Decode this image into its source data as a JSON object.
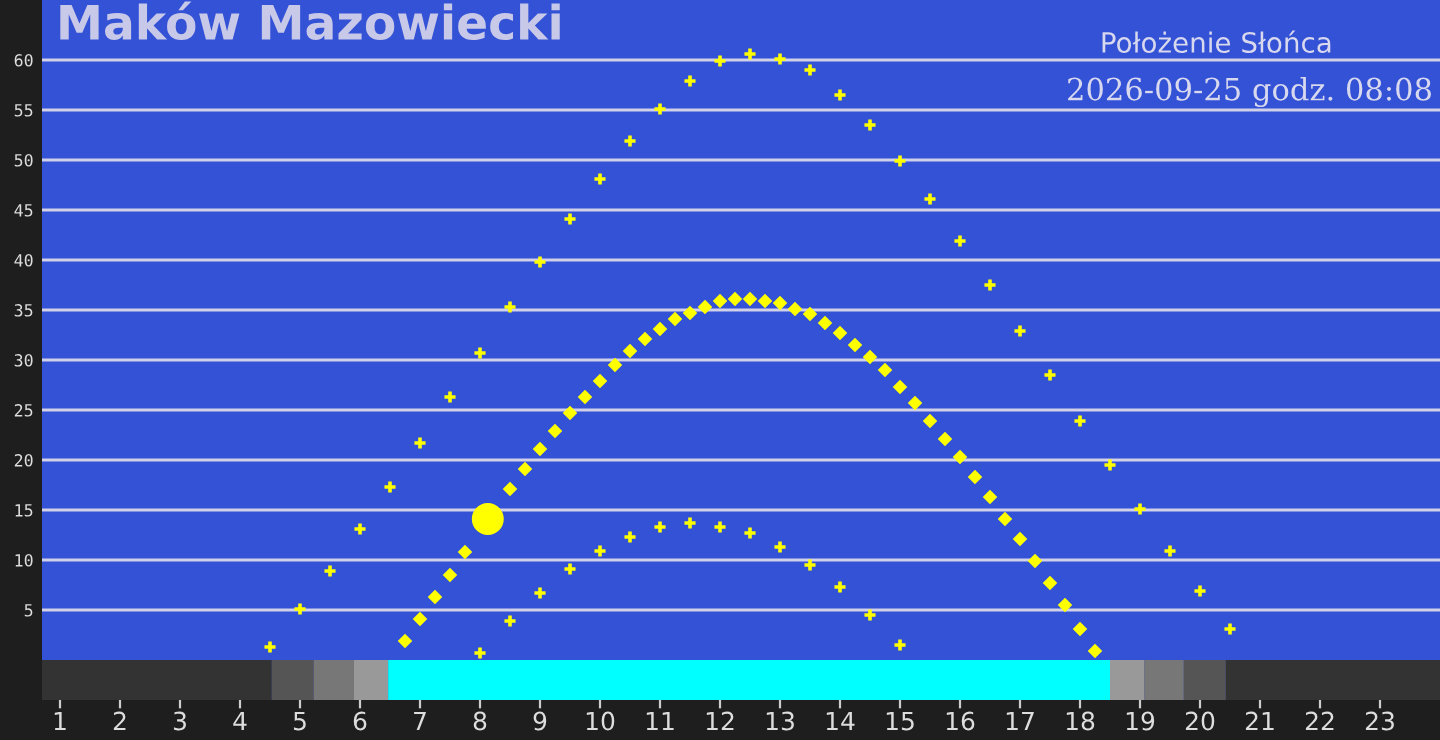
{
  "chart_data": {
    "type": "scatter",
    "title": "Maków Mazowiecki",
    "subtitle": "Położenie Słońca",
    "annotations": [
      "2026-09-25 godz. 08:08"
    ],
    "xlim": [
      0.7,
      24
    ],
    "xticks": [
      1,
      2,
      3,
      4,
      5,
      6,
      7,
      8,
      9,
      10,
      11,
      12,
      13,
      14,
      15,
      16,
      17,
      18,
      19,
      20,
      21,
      22,
      23
    ],
    "ylim": [
      -4,
      66
    ],
    "yticks": [
      5,
      10,
      15,
      20,
      25,
      30,
      35,
      40,
      45,
      50,
      55,
      60
    ],
    "grid": "y",
    "series": [
      {
        "color": "#ffff00",
        "marker": "cross",
        "x": [
          4.5,
          5,
          5.5,
          6,
          6.5,
          7,
          7.5,
          8,
          8.5,
          9,
          9.5,
          10,
          10.5,
          11,
          11.5,
          12,
          12.5,
          13,
          13.5,
          14,
          14.5,
          15,
          15.5,
          16,
          16.5,
          17,
          17.5,
          18,
          18.5,
          19,
          19.5,
          20,
          20.5
        ],
        "values": [
          1.3,
          5.1,
          8.9,
          13.1,
          17.3,
          21.7,
          26.3,
          30.7,
          35.3,
          39.8,
          44.1,
          48.1,
          51.9,
          55.1,
          57.9,
          59.9,
          60.6,
          60.1,
          59.0,
          56.5,
          53.5,
          49.9,
          46.1,
          41.9,
          37.5,
          32.9,
          28.5,
          23.9,
          19.5,
          15.1,
          10.9,
          6.9,
          3.1
        ]
      },
      {
        "color": "#ffff00",
        "marker": "cross",
        "x": [
          8,
          8.5,
          9,
          9.5,
          10,
          10.5,
          11,
          11.5,
          12,
          12.5,
          13,
          13.5,
          14,
          14.5,
          15
        ],
        "values": [
          0.7,
          3.9,
          6.7,
          9.1,
          10.9,
          12.3,
          13.3,
          13.7,
          13.3,
          12.7,
          11.3,
          9.5,
          7.3,
          4.5,
          1.5
        ]
      },
      {
        "color": "#ffff00",
        "marker": "diamond",
        "x": [
          6.75,
          7,
          7.25,
          7.5,
          7.75,
          8.5,
          8.75,
          9,
          9.25,
          9.5,
          9.75,
          10,
          10.25,
          10.5,
          10.75,
          11,
          11.25,
          11.5,
          11.75,
          12,
          12.25,
          12.5,
          12.75,
          13,
          13.25,
          13.5,
          13.75,
          14,
          14.25,
          14.5,
          14.75,
          15,
          15.25,
          15.5,
          15.75,
          16,
          16.25,
          16.5,
          16.75,
          17,
          17.25,
          17.5,
          17.75,
          18,
          18.25
        ],
        "values": [
          1.9,
          4.1,
          6.3,
          8.5,
          10.8,
          17.1,
          19.1,
          21.1,
          22.9,
          24.7,
          26.3,
          27.9,
          29.5,
          30.9,
          32.1,
          33.1,
          34.1,
          34.7,
          35.3,
          35.9,
          36.1,
          36.1,
          35.9,
          35.7,
          35.1,
          34.6,
          33.7,
          32.7,
          31.5,
          30.3,
          29.0,
          27.3,
          25.7,
          23.9,
          22.1,
          20.3,
          18.3,
          16.3,
          14.1,
          12.1,
          9.9,
          7.7,
          5.5,
          3.1,
          0.9
        ]
      },
      {
        "color": "#ffff00",
        "marker": "circle",
        "x": [
          8.13
        ],
        "values": [
          14.1
        ]
      }
    ],
    "bands": [
      {
        "axis": "x",
        "from": 0.7,
        "to": 4.53,
        "color": "#333333"
      },
      {
        "axis": "x",
        "from": 4.53,
        "to": 5.23,
        "color": "#555555"
      },
      {
        "axis": "x",
        "from": 5.23,
        "to": 5.9,
        "color": "#777777"
      },
      {
        "axis": "x",
        "from": 5.9,
        "to": 6.47,
        "color": "#999999"
      },
      {
        "axis": "x",
        "from": 6.47,
        "to": 18.5,
        "color": "#00ffff"
      },
      {
        "axis": "x",
        "from": 18.5,
        "to": 19.07,
        "color": "#999999"
      },
      {
        "axis": "x",
        "from": 19.07,
        "to": 19.73,
        "color": "#777777"
      },
      {
        "axis": "x",
        "from": 19.73,
        "to": 20.43,
        "color": "#555555"
      },
      {
        "axis": "x",
        "from": 20.43,
        "to": 24,
        "color": "#333333"
      }
    ]
  }
}
